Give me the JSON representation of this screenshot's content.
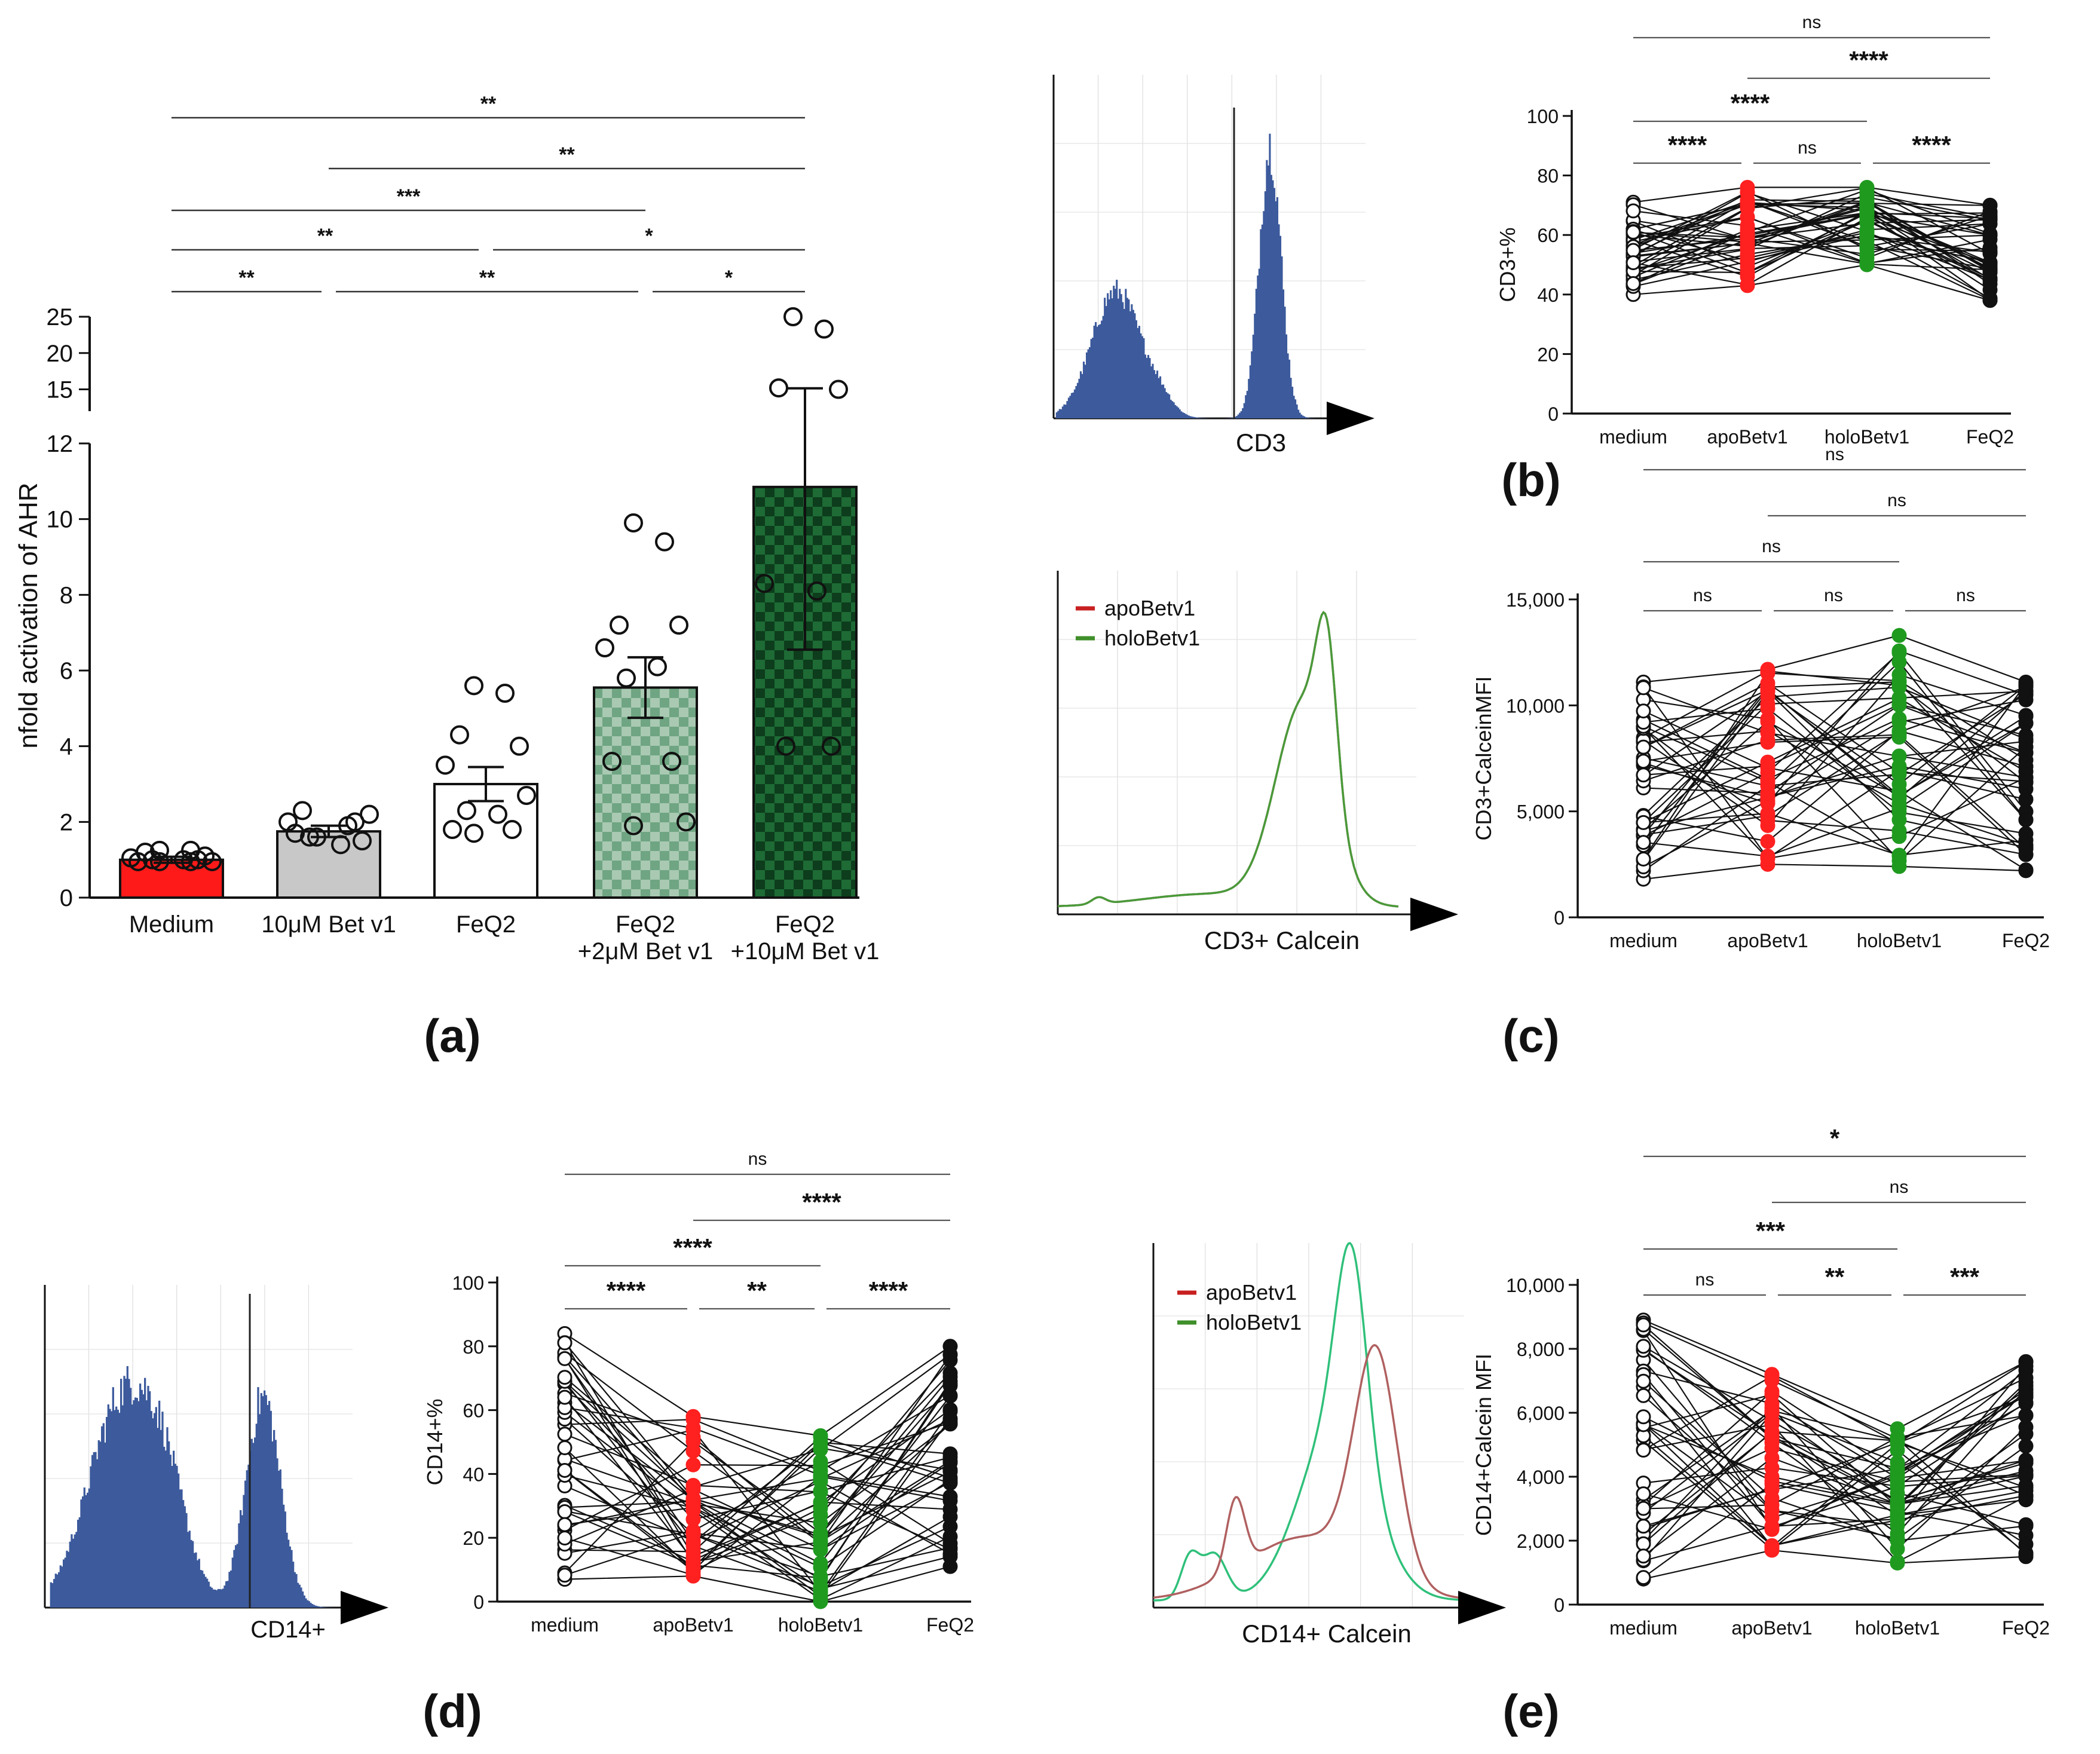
{
  "figure": {
    "panel_labels": [
      "(a)",
      "(b)",
      "(c)",
      "(d)",
      "(e)"
    ],
    "colors": {
      "red": "#ff1a1a",
      "gray": "#c8c8c8",
      "green_light": "#6fa582",
      "green_dark": "#1e6b35",
      "dot_red": "#ff2020",
      "dot_green": "#1f9a1f",
      "hist_blue": "#3c5a9c",
      "line_red": "#c03030",
      "line_green": "#4a9a3a",
      "curve_green": "#2fc07a",
      "curve_red": "#b06060"
    }
  },
  "chart_data": [
    {
      "id": "a",
      "type": "bar",
      "ylabel": "nfold activation of AHR",
      "categories": [
        "Medium",
        "10μM Bet v1",
        "FeQ2",
        "FeQ2\n+2μM Bet v1",
        "FeQ2\n+10μM Bet v1"
      ],
      "means": [
        1.0,
        1.75,
        3.0,
        5.55,
        10.85
      ],
      "sem": [
        0.08,
        0.15,
        0.45,
        0.8,
        4.3
      ],
      "ylim_lower": [
        0,
        12
      ],
      "ylim_upper": [
        12,
        25
      ],
      "yticks_lower": [
        0,
        2,
        4,
        6,
        8,
        10,
        12
      ],
      "yticks_upper": [
        15,
        20,
        25
      ],
      "points": [
        [
          1.25,
          1.25,
          1.2,
          1.1,
          1.05,
          1.0,
          1.0,
          1.0,
          0.95,
          0.95,
          0.95,
          0.95
        ],
        [
          1.6,
          1.9,
          2.3,
          1.5,
          2.0,
          1.4,
          1.6,
          2.0,
          1.7,
          2.2
        ],
        [
          5.6,
          5.4,
          4.3,
          4.0,
          3.5,
          2.2,
          2.3,
          1.8,
          1.8,
          2.7,
          1.7
        ],
        [
          9.9,
          9.4,
          7.2,
          7.2,
          6.6,
          6.1,
          5.8,
          3.6,
          3.6,
          2.0,
          1.9
        ],
        [
          25,
          23.3,
          15.2,
          15.0,
          8.3,
          8.1,
          4.0,
          4.0
        ]
      ],
      "significance": [
        {
          "from": 0,
          "to": 4,
          "label": "**"
        },
        {
          "from": 1,
          "to": 4,
          "label": "**"
        },
        {
          "from": 0,
          "to": 3,
          "label": "***"
        },
        {
          "from": 0,
          "to": 2,
          "label": "**"
        },
        {
          "from": 2,
          "to": 4,
          "label": "*"
        },
        {
          "from": 0,
          "to": 1,
          "label": "**"
        },
        {
          "from": 1,
          "to": 3,
          "label": "**"
        },
        {
          "from": 3,
          "to": 4,
          "label": "*"
        }
      ]
    },
    {
      "id": "b",
      "type": "line",
      "ylabel": "CD3+%",
      "categories": [
        "medium",
        "apoBetv1",
        "holoBetv1",
        "FeQ2"
      ],
      "ylim": [
        0,
        100
      ],
      "yticks": [
        0,
        20,
        40,
        60,
        80,
        100
      ],
      "series_ranges": [
        [
          40,
          71
        ],
        [
          43,
          76
        ],
        [
          50,
          76
        ],
        [
          38,
          70
        ]
      ],
      "n_donors": 40,
      "significance": [
        {
          "from": 0,
          "to": 3,
          "label": "ns"
        },
        {
          "from": 1,
          "to": 3,
          "label": "****"
        },
        {
          "from": 0,
          "to": 2,
          "label": "****"
        },
        {
          "from": 0,
          "to": 1,
          "label": "****"
        },
        {
          "from": 1,
          "to": 2,
          "label": "ns"
        },
        {
          "from": 2,
          "to": 3,
          "label": "****"
        }
      ]
    },
    {
      "id": "c",
      "type": "line",
      "ylabel": "CD3+CalceinMFI",
      "categories": [
        "medium",
        "apoBetv1",
        "holoBetv1",
        "FeQ2"
      ],
      "ylim": [
        0,
        15000
      ],
      "yticks": [
        0,
        5000,
        10000,
        15000
      ],
      "ytick_labels": [
        "0",
        "5,000",
        "10,000",
        "15,000"
      ],
      "series_ranges": [
        [
          1800,
          11100
        ],
        [
          2500,
          11700
        ],
        [
          2400,
          13300
        ],
        [
          2200,
          11100
        ]
      ],
      "n_donors": 40,
      "significance": [
        {
          "from": 0,
          "to": 3,
          "label": "ns"
        },
        {
          "from": 1,
          "to": 3,
          "label": "ns"
        },
        {
          "from": 0,
          "to": 2,
          "label": "ns"
        },
        {
          "from": 0,
          "to": 1,
          "label": "ns"
        },
        {
          "from": 1,
          "to": 2,
          "label": "ns"
        },
        {
          "from": 2,
          "to": 3,
          "label": "ns"
        }
      ]
    },
    {
      "id": "d",
      "type": "line",
      "ylabel": "CD14+%",
      "categories": [
        "medium",
        "apoBetv1",
        "holoBetv1",
        "FeQ2"
      ],
      "ylim": [
        0,
        100
      ],
      "yticks": [
        0,
        20,
        40,
        60,
        80,
        100
      ],
      "series_ranges": [
        [
          7,
          84
        ],
        [
          8,
          58
        ],
        [
          0,
          52
        ],
        [
          11,
          80
        ]
      ],
      "n_donors": 40,
      "significance": [
        {
          "from": 0,
          "to": 3,
          "label": "ns"
        },
        {
          "from": 1,
          "to": 3,
          "label": "****"
        },
        {
          "from": 0,
          "to": 2,
          "label": "****"
        },
        {
          "from": 0,
          "to": 1,
          "label": "****"
        },
        {
          "from": 1,
          "to": 2,
          "label": "**"
        },
        {
          "from": 2,
          "to": 3,
          "label": "****"
        }
      ]
    },
    {
      "id": "e",
      "type": "line",
      "ylabel": "CD14+Calcein MFI",
      "categories": [
        "medium",
        "apoBetv1",
        "holoBetv1",
        "FeQ2"
      ],
      "ylim": [
        0,
        10000
      ],
      "yticks": [
        0,
        2000,
        4000,
        6000,
        8000,
        10000
      ],
      "ytick_labels": [
        "0",
        "2,000",
        "4,000",
        "6,000",
        "8,000",
        "10,000"
      ],
      "series_ranges": [
        [
          800,
          8900
        ],
        [
          1700,
          7200
        ],
        [
          1300,
          5500
        ],
        [
          1500,
          7600
        ]
      ],
      "n_donors": 40,
      "significance": [
        {
          "from": 0,
          "to": 3,
          "label": "*"
        },
        {
          "from": 1,
          "to": 3,
          "label": "ns"
        },
        {
          "from": 0,
          "to": 2,
          "label": "***"
        },
        {
          "from": 0,
          "to": 1,
          "label": "ns"
        },
        {
          "from": 1,
          "to": 2,
          "label": "**"
        },
        {
          "from": 2,
          "to": 3,
          "label": "***"
        }
      ]
    }
  ],
  "histograms": [
    {
      "id": "cd3-hist",
      "xlabel": "CD3"
    },
    {
      "id": "cd3-calcein-overlay",
      "xlabel": "CD3+  Calcein",
      "legend": [
        "apoBetv1",
        "holoBetv1"
      ]
    },
    {
      "id": "cd14-hist",
      "xlabel": "CD14+"
    },
    {
      "id": "cd14-calcein-overlay",
      "xlabel": "CD14+  Calcein",
      "legend": [
        "apoBetv1",
        "holoBetv1"
      ]
    }
  ]
}
